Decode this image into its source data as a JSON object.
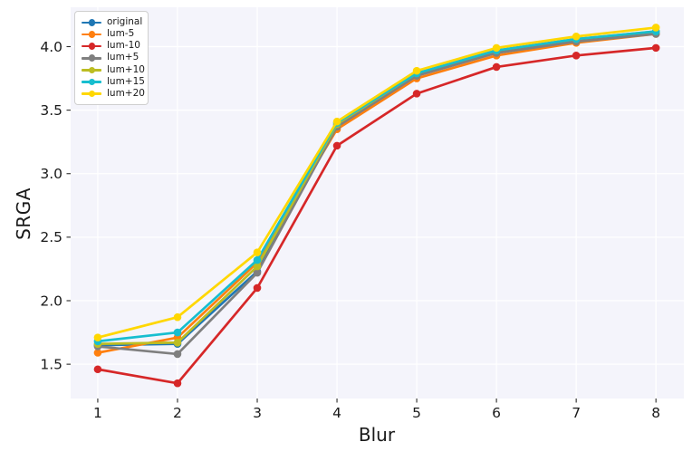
{
  "chart_data": {
    "type": "line",
    "title": "",
    "xlabel": "Blur",
    "ylabel": "SRGA",
    "x": [
      1,
      2,
      3,
      4,
      5,
      6,
      7,
      8
    ],
    "xtick_labels": [
      "1",
      "2",
      "3",
      "4",
      "5",
      "6",
      "7",
      "8"
    ],
    "ytick_labels": [
      "1.5",
      "2.0",
      "2.5",
      "3.0",
      "3.5",
      "4.0"
    ],
    "ytick_values": [
      1.5,
      2.0,
      2.5,
      3.0,
      3.5,
      4.0
    ],
    "xlim": [
      0.66,
      8.35
    ],
    "ylim": [
      1.23,
      4.31
    ],
    "grid": true,
    "legend_position": "upper-left",
    "marker": "circle",
    "series": [
      {
        "name": "original",
        "color": "#1f77b4",
        "values": [
          1.65,
          1.66,
          2.23,
          3.38,
          3.78,
          3.96,
          4.05,
          4.11
        ]
      },
      {
        "name": "lum-5",
        "color": "#ff7f0e",
        "values": [
          1.59,
          1.71,
          2.3,
          3.35,
          3.75,
          3.93,
          4.03,
          4.1
        ]
      },
      {
        "name": "lum-10",
        "color": "#d62728",
        "values": [
          1.46,
          1.35,
          2.1,
          3.22,
          3.63,
          3.84,
          3.93,
          3.99
        ]
      },
      {
        "name": "lum+5",
        "color": "#7f7f7f",
        "values": [
          1.64,
          1.58,
          2.22,
          3.37,
          3.77,
          3.95,
          4.04,
          4.1
        ]
      },
      {
        "name": "lum+10",
        "color": "#bcbd22",
        "values": [
          1.66,
          1.67,
          2.27,
          3.39,
          3.79,
          3.97,
          4.06,
          4.12
        ]
      },
      {
        "name": "lum+15",
        "color": "#17becf",
        "values": [
          1.68,
          1.75,
          2.32,
          3.4,
          3.79,
          3.97,
          4.06,
          4.12
        ]
      },
      {
        "name": "lum+20",
        "color": "#ffd700",
        "values": [
          1.71,
          1.87,
          2.38,
          3.41,
          3.81,
          3.99,
          4.08,
          4.15
        ]
      }
    ]
  },
  "style": {
    "plot_bg": "#f4f4fb",
    "grid_color": "#ffffff",
    "tick_color": "#2b2b2b",
    "text_color": "#1a1a1a",
    "legend_bg": "#ffffff",
    "legend_border": "#cfcfcf"
  }
}
